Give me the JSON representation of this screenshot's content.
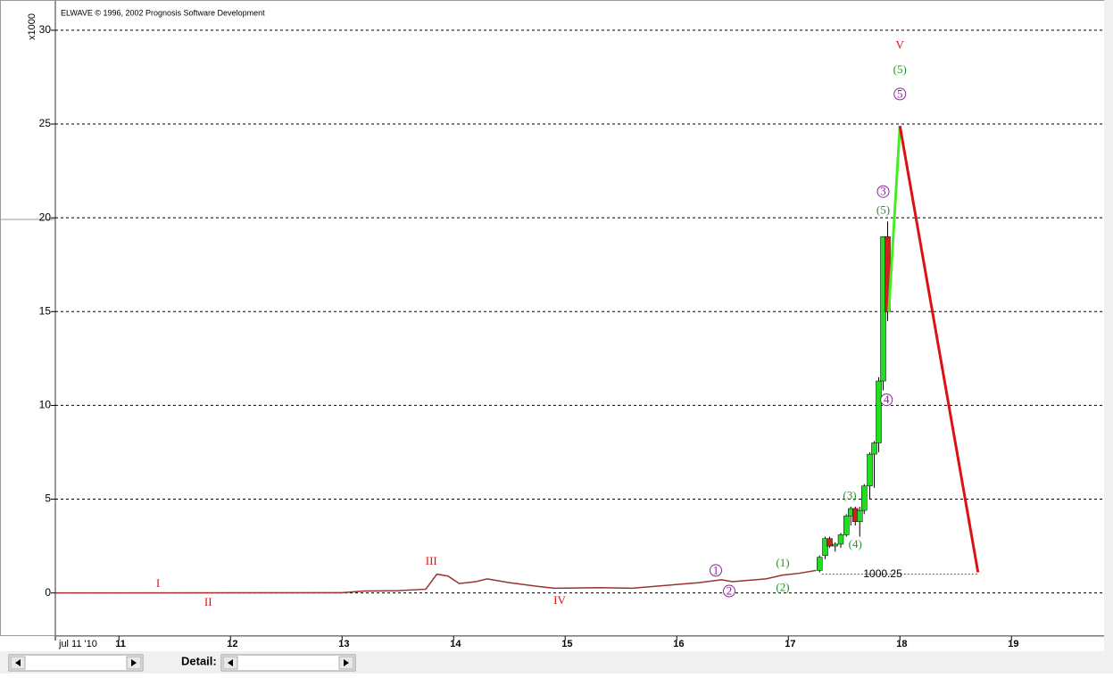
{
  "header": {
    "title": "ELWAVE © 1996, 2002 Prognosis Software Development",
    "detail_label": "Detail:"
  },
  "chart_data": {
    "type": "candlestick",
    "y_unit_label": "x1000",
    "xlim": [
      10.43,
      19.83
    ],
    "xticks": [
      {
        "value": 10.43,
        "label": "jul 11 '10"
      },
      11,
      12,
      13,
      14,
      15,
      16,
      17,
      18,
      19
    ],
    "ylim": [
      -2.3,
      30.9
    ],
    "yticks": [
      0,
      5,
      10,
      15,
      20,
      25,
      30
    ],
    "grid": true,
    "line": {
      "color": "#993333",
      "x": [
        10.43,
        13.0,
        13.2,
        13.5,
        13.75,
        13.85,
        13.95,
        14.05,
        14.2,
        14.3,
        14.5,
        14.75,
        14.9,
        15.3,
        15.6,
        15.9,
        16.2,
        16.4,
        16.5,
        16.8,
        16.95,
        17.1,
        17.25
      ],
      "values": [
        0,
        0.01,
        0.1,
        0.12,
        0.2,
        1.0,
        0.9,
        0.5,
        0.6,
        0.75,
        0.55,
        0.35,
        0.25,
        0.28,
        0.25,
        0.4,
        0.55,
        0.7,
        0.6,
        0.75,
        0.95,
        1.05,
        1.2
      ]
    },
    "up_color": "#22dd22",
    "down_color": "#cc2222",
    "x": [
      17.28,
      17.33,
      17.37,
      17.42,
      17.47,
      17.52,
      17.56,
      17.6,
      17.64,
      17.68,
      17.73,
      17.77,
      17.81,
      17.85,
      17.89
    ],
    "open": [
      1.2,
      2.0,
      2.9,
      2.5,
      2.6,
      3.1,
      4.1,
      4.5,
      3.8,
      4.4,
      5.7,
      7.4,
      8.0,
      11.3,
      19.0
    ],
    "high": [
      2.0,
      3.0,
      3.0,
      2.7,
      3.2,
      4.2,
      4.6,
      4.6,
      4.6,
      5.8,
      7.5,
      8.1,
      11.5,
      19.0,
      19.8
    ],
    "low": [
      1.1,
      1.8,
      2.4,
      2.2,
      2.4,
      3.0,
      3.6,
      3.6,
      3.0,
      4.2,
      5.0,
      5.6,
      7.5,
      10.8,
      14.5
    ],
    "close": [
      1.9,
      2.9,
      2.5,
      2.6,
      3.1,
      4.1,
      4.5,
      3.8,
      4.4,
      5.7,
      7.4,
      8.0,
      11.3,
      19.0,
      15.0
    ],
    "projections": [
      {
        "color": "#44ee22",
        "x": [
          17.9,
          18.0
        ],
        "values": [
          15.0,
          24.9
        ]
      },
      {
        "color": "#dd1111",
        "x": [
          18.0,
          18.7
        ],
        "values": [
          24.9,
          1.1
        ]
      }
    ],
    "level": {
      "value": 1.00025,
      "label": "1000.25",
      "color": "#dd1111",
      "x": [
        17.3,
        18.7
      ]
    },
    "annotations": [
      {
        "text": "I",
        "x": 11.35,
        "y": 0.5,
        "color": "#dd1111"
      },
      {
        "text": "II",
        "x": 11.8,
        "y": -0.5,
        "color": "#dd1111"
      },
      {
        "text": "III",
        "x": 13.8,
        "y": 1.7,
        "color": "#dd1111"
      },
      {
        "text": "IV",
        "x": 14.95,
        "y": -0.4,
        "color": "#dd1111"
      },
      {
        "text": "V",
        "x": 18.0,
        "y": 29.2,
        "color": "#dd1111"
      },
      {
        "text": "(1)",
        "x": 16.95,
        "y": 1.6,
        "color": "#229922"
      },
      {
        "text": "(2)",
        "x": 16.95,
        "y": 0.3,
        "color": "#229922"
      },
      {
        "text": "(3)",
        "x": 17.55,
        "y": 5.2,
        "color": "#229922"
      },
      {
        "text": "(4)",
        "x": 17.6,
        "y": 2.6,
        "color": "#229922"
      },
      {
        "text": "(5)",
        "x": 17.85,
        "y": 20.4,
        "color": "#229922"
      },
      {
        "text": "(5)",
        "x": 18.0,
        "y": 27.9,
        "color": "#229922"
      },
      {
        "text": "1",
        "x": 16.35,
        "y": 1.2,
        "color": "#882299",
        "circle": true
      },
      {
        "text": "2",
        "x": 16.47,
        "y": 0.1,
        "color": "#882299",
        "circle": true
      },
      {
        "text": "3",
        "x": 17.85,
        "y": 21.4,
        "color": "#882299",
        "circle": true
      },
      {
        "text": "4",
        "x": 17.88,
        "y": 10.3,
        "color": "#882299",
        "circle": true
      },
      {
        "text": "5",
        "x": 18.0,
        "y": 26.6,
        "color": "#882299",
        "circle": true
      }
    ]
  }
}
